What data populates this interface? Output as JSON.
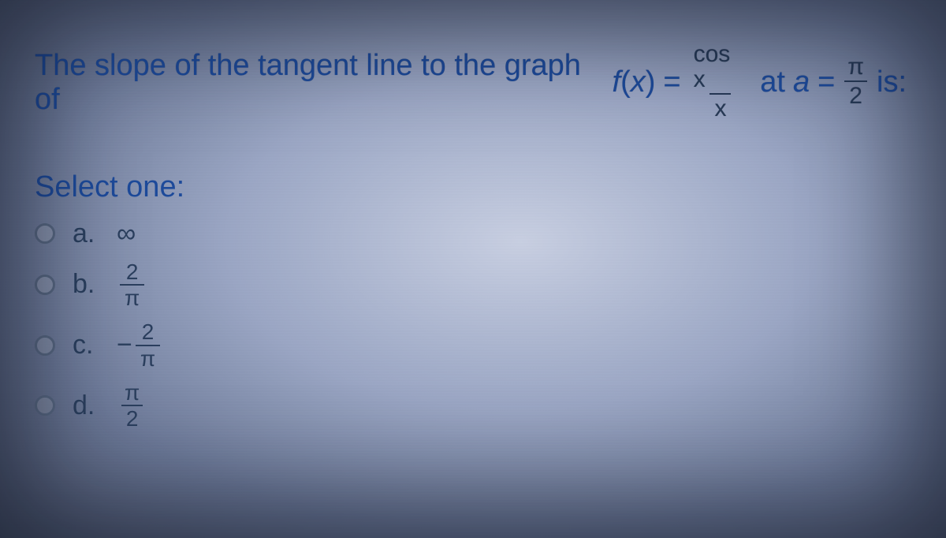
{
  "question": {
    "prefix": "The slope of the tangent line to the graph of",
    "func_name": "f",
    "func_arg": "x",
    "equals1": "=",
    "frac1_num": "cos x",
    "frac1_den": "x",
    "mid": "at",
    "var": "a",
    "equals2": "=",
    "frac2_num": "π",
    "frac2_den": "2",
    "suffix": "is:"
  },
  "select_label": "Select one:",
  "options": {
    "a": {
      "letter": "a.",
      "display": "text",
      "text": "∞"
    },
    "b": {
      "letter": "b.",
      "display": "frac",
      "neg": "",
      "num": "2",
      "den": "π"
    },
    "c": {
      "letter": "c.",
      "display": "frac",
      "neg": "−",
      "num": "2",
      "den": "π"
    },
    "d": {
      "letter": "d.",
      "display": "frac",
      "neg": "",
      "num": "π",
      "den": "2"
    }
  },
  "colors": {
    "text_primary": "#1d4a9a",
    "text_muted": "#2b3f5e",
    "divider": "#273a57"
  }
}
